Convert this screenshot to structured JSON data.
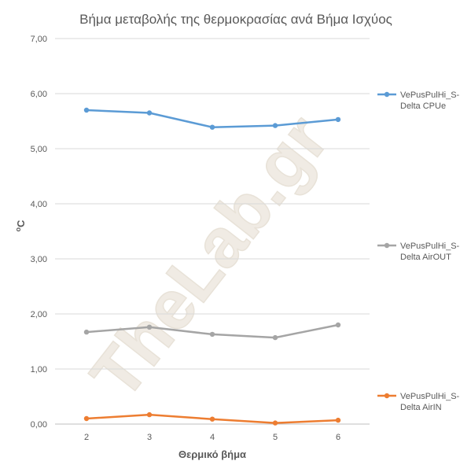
{
  "watermark": "TheLab.gr",
  "chart_data": {
    "type": "line",
    "title": "Βήμα μεταβολής της θερμοκρασίας ανά Βήμα Ισχύος",
    "xlabel": "Θερμικό βήμα",
    "ylabel": "oC",
    "ylabel_sup": "o",
    "ylabel_main": "C",
    "categories": [
      "2",
      "3",
      "4",
      "5",
      "6"
    ],
    "ylim": [
      0,
      7
    ],
    "yticks": [
      "0,00",
      "1,00",
      "2,00",
      "3,00",
      "4,00",
      "5,00",
      "6,00",
      "7,00"
    ],
    "grid": true,
    "legend_position": "right",
    "series": [
      {
        "name": "VePusPulHi_S-Delta CPUe",
        "name_lines": [
          "VePusPulHi_S-",
          "Delta CPUe"
        ],
        "color": "#5b9bd5",
        "values": [
          5.7,
          5.65,
          5.39,
          5.42,
          5.53
        ]
      },
      {
        "name": "VePusPulHi_S-Delta AirOUT",
        "name_lines": [
          "VePusPulHi_S-",
          "Delta AirOUT"
        ],
        "color": "#a5a5a5",
        "values": [
          1.67,
          1.76,
          1.63,
          1.57,
          1.8
        ]
      },
      {
        "name": "VePusPulHi_S-Delta AirIN",
        "name_lines": [
          "VePusPulHi_S-",
          "Delta AirIN"
        ],
        "color": "#ed7d31",
        "values": [
          0.1,
          0.17,
          0.09,
          0.02,
          0.07
        ]
      }
    ]
  }
}
